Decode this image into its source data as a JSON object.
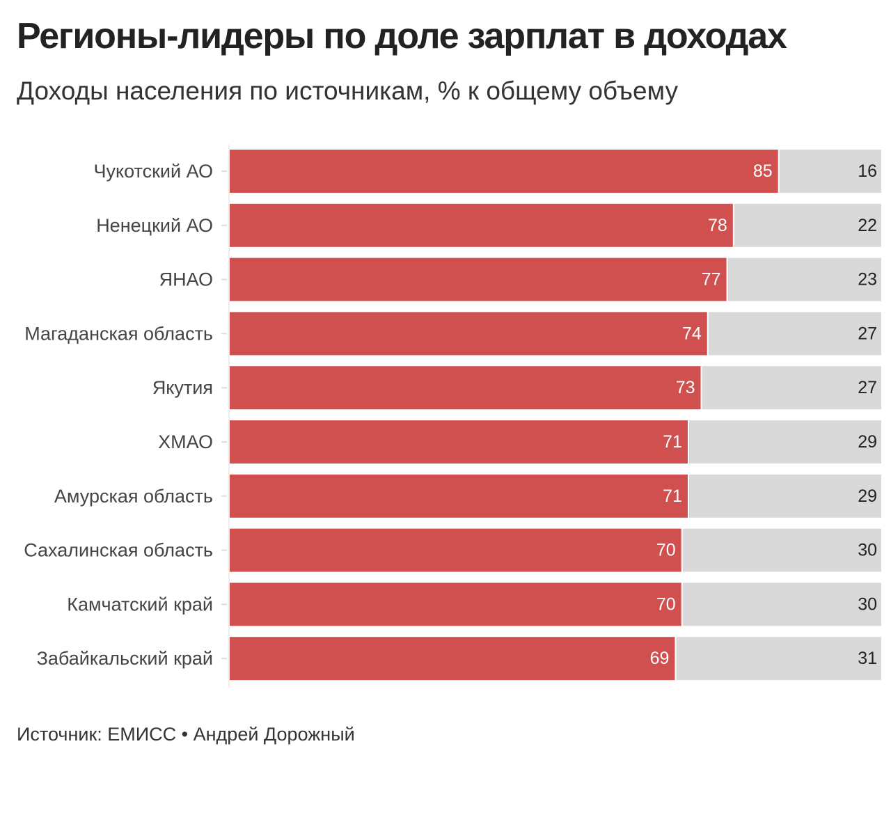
{
  "title": "Регионы-лидеры по доле зарплат в доходах",
  "subtitle": "Доходы населения по источникам, % к общему объему",
  "source": "Источник: ЕМИСС • Андрей Дорожный",
  "colors": {
    "salary": "#d05050",
    "other": "#d9d9d9",
    "salary_label": "#ffffff",
    "other_label": "#222222",
    "category_label": "#444444"
  },
  "chart_data": {
    "type": "bar",
    "orientation": "horizontal",
    "stacked": true,
    "categories": [
      "Чукотский АО",
      "Ненецкий АО",
      "ЯНАО",
      "Магаданская область",
      "Якутия",
      "ХМАО",
      "Амурская область",
      "Сахалинская область",
      "Камчатский край",
      "Забайкальский край"
    ],
    "series": [
      {
        "values": [
          85,
          78,
          77,
          74,
          73,
          71,
          71,
          70,
          70,
          69
        ],
        "color": "#d05050"
      },
      {
        "values": [
          16,
          22,
          23,
          27,
          27,
          29,
          29,
          30,
          30,
          31
        ],
        "color": "#d9d9d9"
      }
    ],
    "xlim": [
      0,
      101
    ],
    "legend": "none",
    "grid": false
  }
}
